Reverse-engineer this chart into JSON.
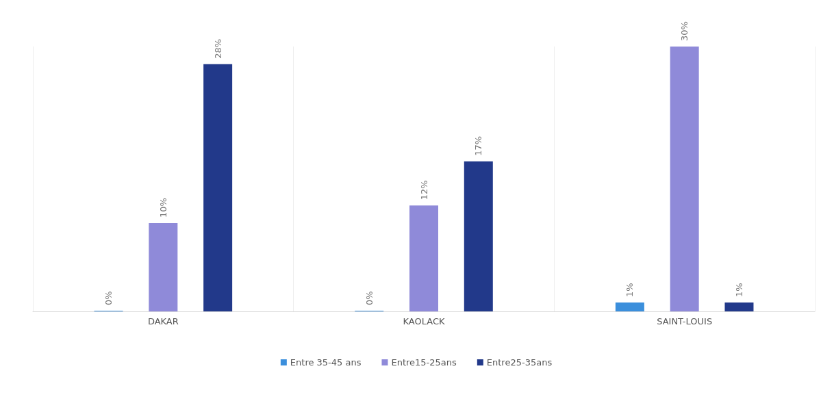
{
  "chart_data": {
    "type": "bar",
    "categories": [
      "DAKAR",
      "KAOLACK",
      "SAINT-LOUIS"
    ],
    "series": [
      {
        "name": "Entre 35-45 ans",
        "color": "#3b8fdc",
        "values": [
          0,
          0,
          1
        ],
        "value_labels": [
          "0%",
          "0%",
          "1%"
        ]
      },
      {
        "name": "Entre15-25ans",
        "color": "#8f8ad9",
        "values": [
          10,
          12,
          30
        ],
        "value_labels": [
          "10%",
          "12%",
          "30%"
        ]
      },
      {
        "name": "Entre25-35ans",
        "color": "#22398a",
        "values": [
          28,
          17,
          1
        ],
        "value_labels": [
          "28%",
          "17%",
          "1%"
        ]
      }
    ],
    "grid": "x",
    "legend": "bottom"
  }
}
